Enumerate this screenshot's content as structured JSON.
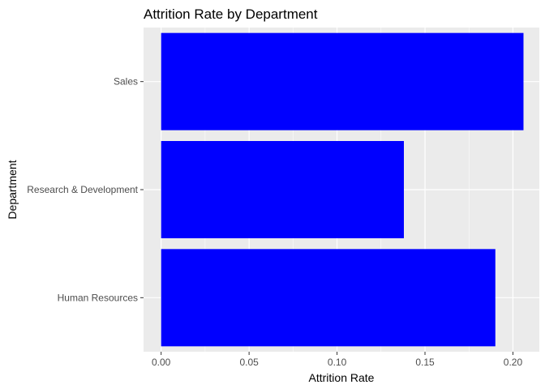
{
  "chart_data": {
    "type": "bar",
    "orientation": "horizontal",
    "title": "Attrition Rate by Department",
    "xlabel": "Attrition Rate",
    "ylabel": "Department",
    "categories": [
      "Human Resources",
      "Research & Development",
      "Sales"
    ],
    "values": [
      0.19,
      0.138,
      0.206
    ],
    "xlim": [
      0,
      0.215
    ],
    "x_ticks": [
      0.0,
      0.05,
      0.1,
      0.15,
      0.2
    ],
    "x_tick_labels": [
      "0.00",
      "0.05",
      "0.10",
      "0.15",
      "0.20"
    ],
    "bar_color": "#0000ff",
    "panel_background": "#ebebeb",
    "grid": true,
    "legend": "none"
  }
}
